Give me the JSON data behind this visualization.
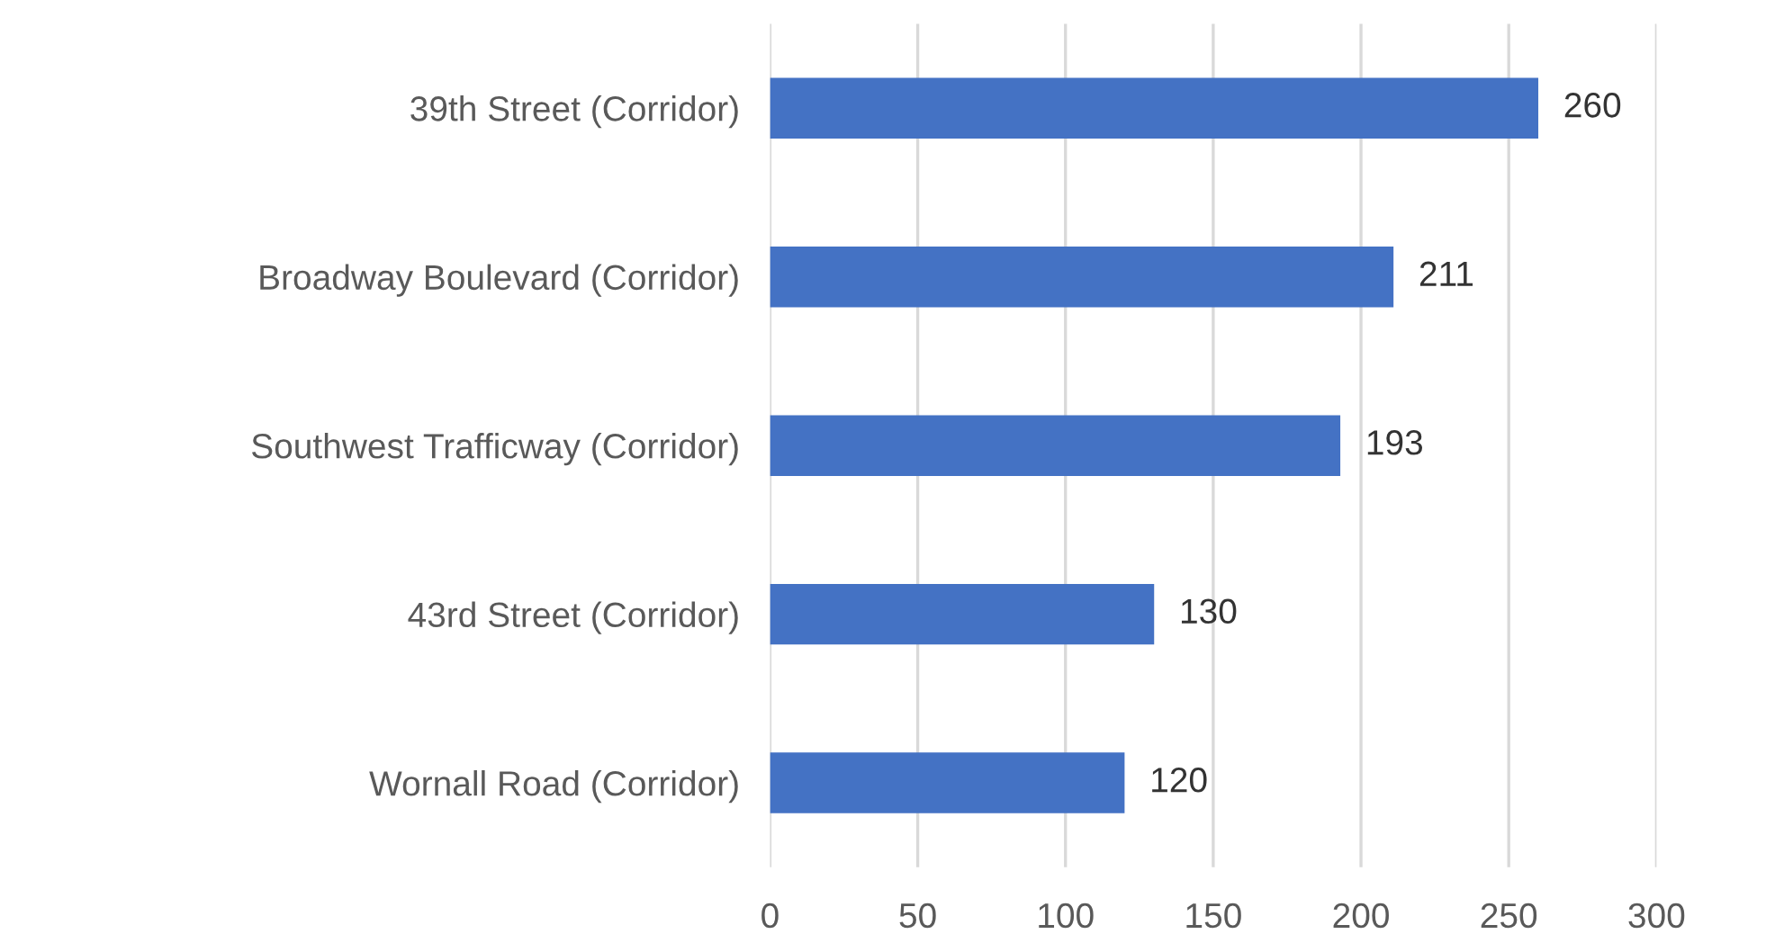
{
  "chart_data": {
    "type": "bar",
    "orientation": "horizontal",
    "categories": [
      "39th Street (Corridor)",
      "Broadway Boulevard (Corridor)",
      "Southwest Trafficway (Corridor)",
      "43rd Street (Corridor)",
      "Wornall Road (Corridor)"
    ],
    "values": [
      260,
      211,
      193,
      130,
      120
    ],
    "color": "#4472c4",
    "xlim": [
      0,
      300
    ],
    "xticks": [
      0,
      50,
      100,
      150,
      200,
      250,
      300
    ],
    "grid": "x",
    "data_labels": true
  }
}
